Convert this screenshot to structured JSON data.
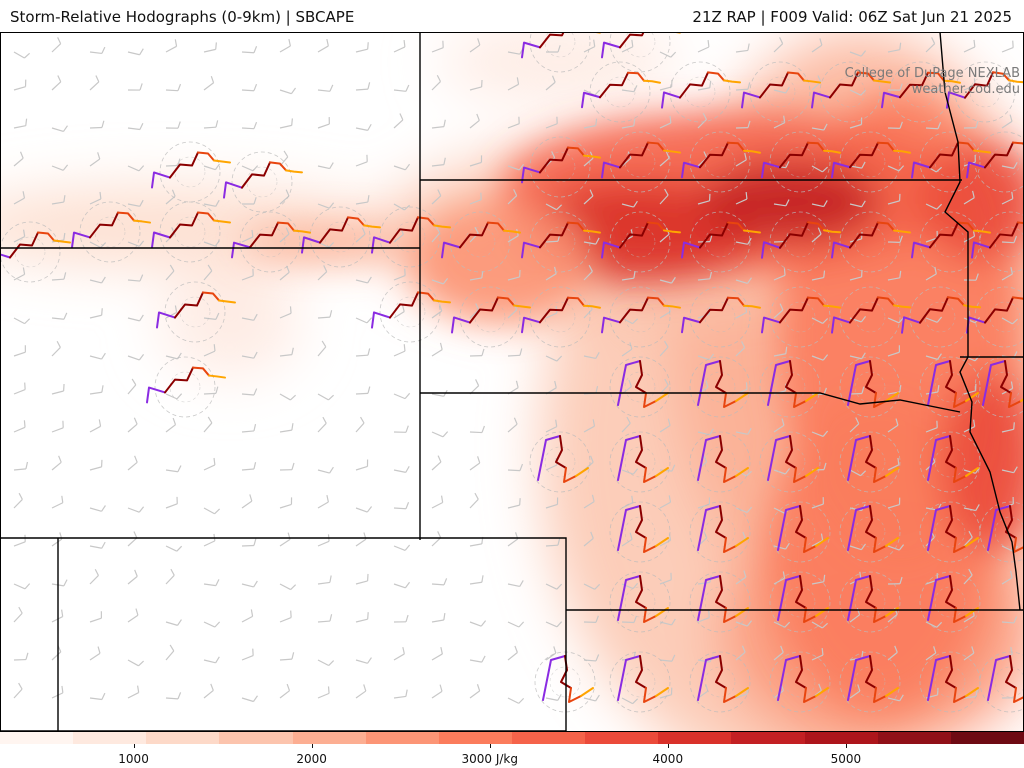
{
  "header": {
    "title_left": "Storm-Relative Hodographs (0-9km) | SBCAPE",
    "title_right": "21Z RAP | F009 Valid: 06Z Sat Jun 21 2025"
  },
  "credit": {
    "line1": "College of DuPage NEXLAB",
    "line2": "weather.cod.edu"
  },
  "colorbar": {
    "colors": [
      "#fff5f0",
      "#fee9df",
      "#fdd9c8",
      "#fcc4ad",
      "#fcae92",
      "#fc9576",
      "#fb7c5c",
      "#f5634a",
      "#eb4a3a",
      "#d9312a",
      "#c32023",
      "#ad151b",
      "#901018",
      "#6e0a13"
    ],
    "tick_labels": [
      {
        "label": "1000",
        "value": 1000
      },
      {
        "label": "2000",
        "value": 2000
      },
      {
        "label": "3000 J/kg",
        "value": 3000
      },
      {
        "label": "4000",
        "value": 4000
      },
      {
        "label": "5000",
        "value": 5000
      }
    ],
    "range": [
      250,
      6000
    ]
  },
  "map": {
    "field": "SBCAPE",
    "units": "J/kg",
    "hodograph_colors": [
      "#8a2be2",
      "#8b0000",
      "#e8450f",
      "#ffa500"
    ],
    "barb_color": "#c8c8c8"
  }
}
